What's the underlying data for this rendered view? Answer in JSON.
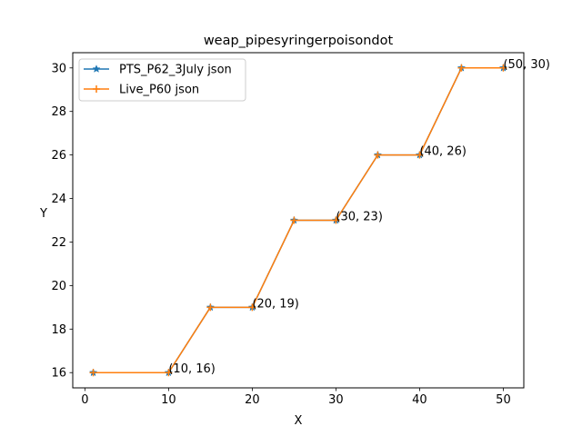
{
  "chart_data": {
    "type": "line",
    "title": "weap_pipesyringerpoisondot",
    "xlabel": "X",
    "ylabel": "Y",
    "xlim": [
      -1.45,
      52.45
    ],
    "ylim": [
      15.3,
      30.7
    ],
    "xticks": [
      0,
      10,
      20,
      30,
      40,
      50
    ],
    "yticks": [
      16,
      18,
      20,
      22,
      24,
      26,
      28,
      30
    ],
    "grid": false,
    "legend_position": "upper-left",
    "series": [
      {
        "name": "PTS_P62_3July json",
        "color": "#1f77b4",
        "marker": "star",
        "x": [
          1,
          10,
          15,
          20,
          25,
          30,
          35,
          40,
          45,
          50
        ],
        "y": [
          16,
          16,
          19,
          19,
          23,
          23,
          26,
          26,
          30,
          30
        ]
      },
      {
        "name": "Live_P60 json",
        "color": "#ff7f0e",
        "marker": "plus",
        "x": [
          1,
          10,
          15,
          20,
          25,
          30,
          35,
          40,
          45,
          50
        ],
        "y": [
          16,
          16,
          19,
          19,
          23,
          23,
          26,
          26,
          30,
          30
        ]
      }
    ],
    "annotations": [
      {
        "x": 10,
        "y": 16,
        "text": "(10, 16)"
      },
      {
        "x": 20,
        "y": 19,
        "text": "(20, 19)"
      },
      {
        "x": 30,
        "y": 23,
        "text": "(30, 23)"
      },
      {
        "x": 40,
        "y": 26,
        "text": "(40, 26)"
      },
      {
        "x": 50,
        "y": 30,
        "text": "(50, 30)"
      }
    ]
  }
}
